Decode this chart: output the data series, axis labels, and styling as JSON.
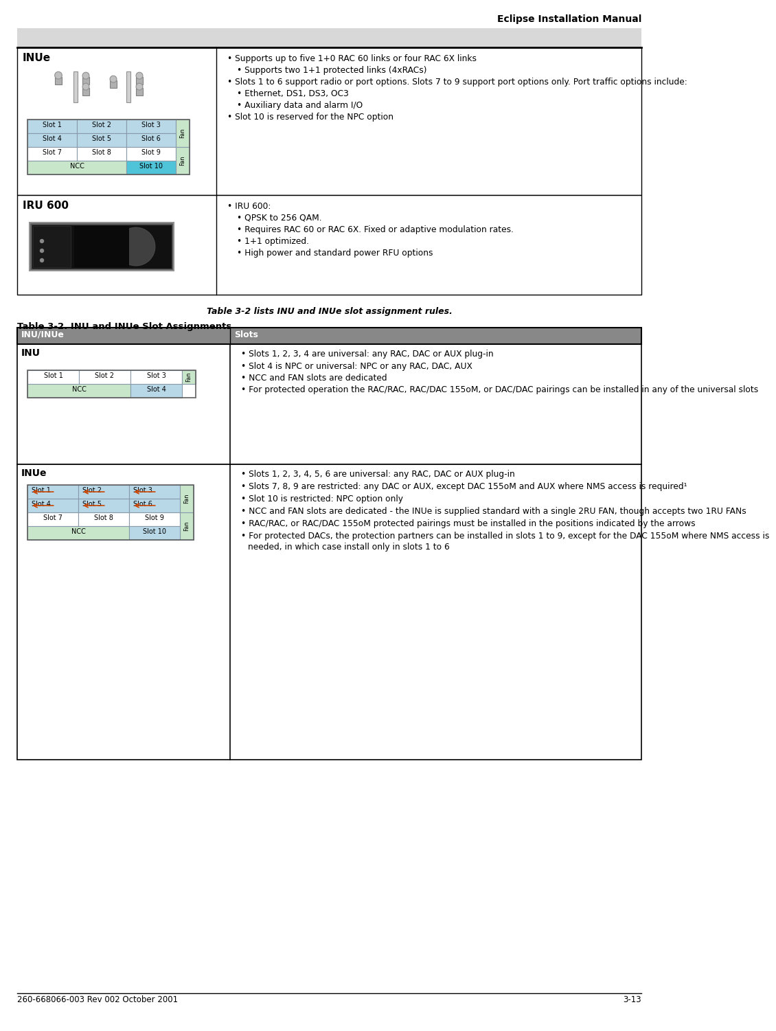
{
  "title_right": "Eclipse Installation Manual",
  "footer_left": "260-668066-003 Rev 002 October 2001",
  "footer_right": "3-13",
  "intro_text": "Table 3-2 lists INU and INUe slot assignment rules.",
  "table2_title": "Table 3-2. INU and INUe Slot Assignments",
  "bg_color": "#ffffff",
  "header_bg": "#d8d8d8",
  "table_header_bg": "#888888",
  "slot_blue": "#b8d8e8",
  "slot_green": "#c8e6c9",
  "slot_cyan": "#4fc3d8",
  "slot_white": "#ffffff",
  "top_table": {
    "rows": [
      {
        "label": "INUe",
        "bullets": [
          {
            "level": 1,
            "text": "Supports up to five 1+0 RAC 60 links or four RAC 6X links"
          },
          {
            "level": 2,
            "text": "Supports two 1+1 protected links (4xRACs)"
          },
          {
            "level": 1,
            "text": "Slots 1 to 6 support radio or port options. Slots 7 to 9 support port options only. Port traffic options include:"
          },
          {
            "level": 2,
            "text": "Ethernet, DS1, DS3, OC3"
          },
          {
            "level": 2,
            "text": "Auxiliary data and alarm I/O"
          },
          {
            "level": 1,
            "text": "Slot 10 is reserved for the NPC option"
          }
        ]
      },
      {
        "label": "IRU 600",
        "bullets": [
          {
            "level": 1,
            "text": "IRU 600:"
          },
          {
            "level": 2,
            "text": "QPSK to 256 QAM."
          },
          {
            "level": 2,
            "text": "Requires RAC 60 or RAC 6X. Fixed or adaptive modulation rates."
          },
          {
            "level": 2,
            "text": "1+1 optimized."
          },
          {
            "level": 2,
            "text": "High power and standard power RFU options"
          }
        ]
      }
    ]
  },
  "bottom_table": {
    "col1_header": "INU/INUe",
    "col2_header": "Slots",
    "rows": [
      {
        "label": "INU",
        "bullets": [
          {
            "level": 1,
            "text": "Slots 1, 2, 3, 4 are universal: any RAC, DAC or AUX plug-in"
          },
          {
            "level": 1,
            "text": "Slot 4 is NPC or universal: NPC or any RAC, DAC, AUX"
          },
          {
            "level": 1,
            "text": "NCC and FAN slots are dedicated"
          },
          {
            "level": 1,
            "text": "For protected operation the RAC/RAC, RAC/DAC 155oM, or DAC/DAC pairings can be installed in any of the universal slots"
          }
        ]
      },
      {
        "label": "INUe",
        "bullets": [
          {
            "level": 1,
            "text": "Slots 1, 2, 3, 4, 5, 6 are universal: any RAC, DAC or AUX plug-in"
          },
          {
            "level": 1,
            "text": "Slots 7, 8, 9 are restricted: any DAC or AUX, except DAC 155oM and AUX where NMS access is required¹"
          },
          {
            "level": 1,
            "text": "Slot 10 is restricted: NPC option only"
          },
          {
            "level": 1,
            "text": "NCC and FAN slots are dedicated - the INUe is supplied standard with a single 2RU FAN, though accepts two 1RU FANs"
          },
          {
            "level": 1,
            "text": "RAC/RAC, or RAC/DAC 155oM protected pairings must be installed in the positions indicated by the arrows"
          },
          {
            "level": 1,
            "text": "For protected DACs, the protection partners can be installed in slots 1 to 9, except for the DAC 155oM where NMS access is needed, in which case install only in slots 1 to 6"
          }
        ]
      }
    ]
  }
}
